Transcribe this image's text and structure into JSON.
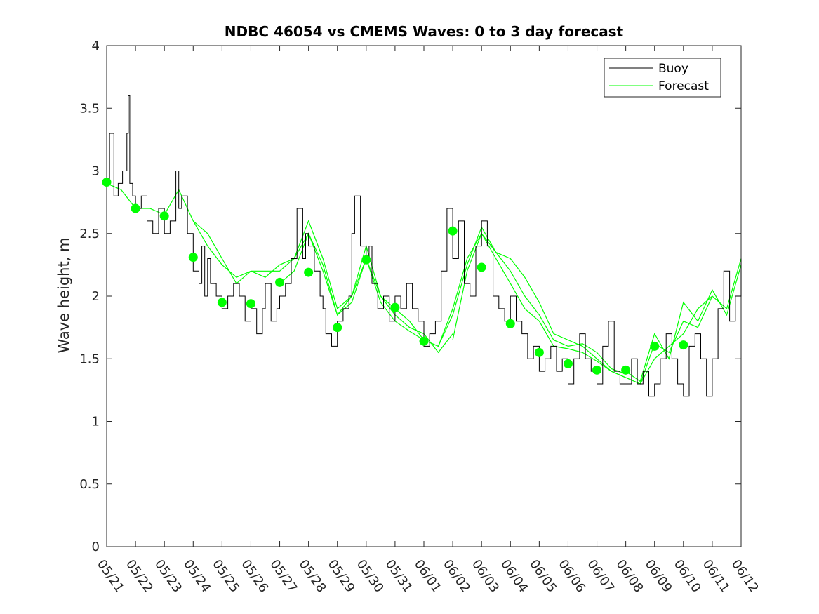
{
  "chart_data": {
    "type": "line",
    "title": "NDBC 46054 vs CMEMS Waves: 0 to 3 day forecast",
    "xlabel": "",
    "ylabel": "Wave height, m",
    "x_tick_labels": [
      "05/21",
      "05/22",
      "05/23",
      "05/24",
      "05/25",
      "05/26",
      "05/27",
      "05/28",
      "05/29",
      "05/30",
      "05/31",
      "06/01",
      "06/02",
      "06/03",
      "06/04",
      "06/05",
      "06/06",
      "06/07",
      "06/08",
      "06/09",
      "06/10",
      "06/11",
      "06/12"
    ],
    "y_ticks": [
      0,
      0.5,
      1,
      1.5,
      2,
      2.5,
      3,
      3.5,
      4
    ],
    "ylim": [
      0,
      4
    ],
    "grid": false,
    "legend": {
      "placement": "top-right",
      "entries": [
        "Buoy",
        "Forecast"
      ]
    },
    "series": [
      {
        "name": "Buoy",
        "color": "#000000",
        "x_day": [
          0,
          0.1,
          0.25,
          0.4,
          0.55,
          0.7,
          0.75,
          0.8,
          0.9,
          1.0,
          1.2,
          1.4,
          1.6,
          1.8,
          2.0,
          2.2,
          2.4,
          2.5,
          2.6,
          2.8,
          3.0,
          3.2,
          3.3,
          3.4,
          3.5,
          3.6,
          3.8,
          4.0,
          4.2,
          4.4,
          4.6,
          4.8,
          5.0,
          5.2,
          5.4,
          5.5,
          5.7,
          5.9,
          6.0,
          6.2,
          6.4,
          6.6,
          6.8,
          6.9,
          7.0,
          7.2,
          7.4,
          7.5,
          7.6,
          7.8,
          8.0,
          8.2,
          8.4,
          8.5,
          8.6,
          8.8,
          9.0,
          9.1,
          9.2,
          9.4,
          9.6,
          9.8,
          10.0,
          10.2,
          10.4,
          10.6,
          10.8,
          11.0,
          11.2,
          11.4,
          11.6,
          11.8,
          12.0,
          12.2,
          12.4,
          12.6,
          12.8,
          13.0,
          13.2,
          13.4,
          13.6,
          13.8,
          14.0,
          14.2,
          14.4,
          14.6,
          14.8,
          15.0,
          15.2,
          15.4,
          15.6,
          15.8,
          16.0,
          16.2,
          16.4,
          16.6,
          16.8,
          17.0,
          17.2,
          17.4,
          17.6,
          17.8,
          18.0,
          18.2,
          18.4,
          18.6,
          18.8,
          19.0,
          19.2,
          19.4,
          19.6,
          19.8,
          20.0,
          20.2,
          20.4,
          20.6,
          20.8,
          21.0,
          21.2,
          21.4,
          21.6,
          21.8,
          22.0
        ],
        "y": [
          2.9,
          3.3,
          2.8,
          2.9,
          3.0,
          3.3,
          3.6,
          2.9,
          2.8,
          2.7,
          2.8,
          2.6,
          2.5,
          2.7,
          2.5,
          2.6,
          3.0,
          2.7,
          2.8,
          2.5,
          2.2,
          2.1,
          2.4,
          2.0,
          2.3,
          2.1,
          2.0,
          1.9,
          2.0,
          2.1,
          2.0,
          1.8,
          1.9,
          1.7,
          1.9,
          2.1,
          1.8,
          1.9,
          2.0,
          2.1,
          2.3,
          2.7,
          2.3,
          2.5,
          2.4,
          2.2,
          2.0,
          1.9,
          1.7,
          1.6,
          1.8,
          1.9,
          2.0,
          2.5,
          2.8,
          2.4,
          2.3,
          2.4,
          2.1,
          1.9,
          2.0,
          1.8,
          2.0,
          1.9,
          2.1,
          1.9,
          1.8,
          1.6,
          1.7,
          1.8,
          2.2,
          2.7,
          2.3,
          2.6,
          2.1,
          2.0,
          2.4,
          2.6,
          2.4,
          2.0,
          1.9,
          1.8,
          2.0,
          1.8,
          1.7,
          1.5,
          1.6,
          1.4,
          1.5,
          1.6,
          1.4,
          1.5,
          1.3,
          1.5,
          1.7,
          1.5,
          1.4,
          1.3,
          1.6,
          1.8,
          1.4,
          1.3,
          1.3,
          1.5,
          1.3,
          1.4,
          1.2,
          1.3,
          1.5,
          1.7,
          1.5,
          1.3,
          1.2,
          1.6,
          1.7,
          1.5,
          1.2,
          1.5,
          1.9,
          2.2,
          1.8,
          2.0,
          2.3
        ]
      },
      {
        "name": "Forecast",
        "color": "#00ff00",
        "members": [
          {
            "x_day": [
              0,
              0.5,
              1,
              1.5,
              2,
              2.5,
              3,
              3.5,
              4,
              4.5,
              5,
              5.5,
              6,
              6.5,
              7,
              7.5,
              8,
              8.5,
              9
            ],
            "y": [
              2.9,
              2.85,
              2.7,
              2.7,
              2.65,
              2.85,
              2.6,
              2.4,
              2.25,
              2.15,
              2.2,
              2.2,
              2.2,
              2.3,
              2.5,
              2.2,
              1.85,
              1.95,
              2.3
            ]
          },
          {
            "x_day": [
              3,
              3.5,
              4,
              4.5,
              5,
              5.5,
              6,
              6.5,
              7,
              7.5,
              8,
              8.5,
              9,
              9.5,
              10,
              10.5,
              11,
              11.5,
              12
            ],
            "y": [
              2.6,
              2.5,
              2.3,
              2.1,
              2.2,
              2.15,
              2.25,
              2.3,
              2.6,
              2.3,
              1.9,
              2.0,
              2.4,
              2.0,
              1.85,
              1.75,
              1.7,
              1.55,
              1.7
            ]
          },
          {
            "x_day": [
              6,
              6.5,
              7,
              7.5,
              8,
              8.5,
              9,
              9.5,
              10,
              10.5,
              11,
              11.5,
              12,
              12.5,
              13,
              13.5,
              14,
              14.5,
              15
            ],
            "y": [
              2.1,
              2.2,
              2.5,
              2.25,
              1.85,
              2.0,
              2.3,
              1.95,
              1.8,
              1.72,
              1.65,
              1.6,
              1.9,
              2.3,
              2.5,
              2.3,
              2.1,
              1.9,
              1.8
            ]
          },
          {
            "x_day": [
              9,
              9.5,
              10,
              10.5,
              11,
              11.5,
              12,
              12.5,
              13,
              13.5,
              14,
              14.5,
              15,
              15.5,
              16,
              16.5,
              17,
              17.5,
              18
            ],
            "y": [
              2.3,
              2.0,
              1.9,
              1.8,
              1.65,
              1.6,
              1.85,
              2.25,
              2.55,
              2.35,
              2.2,
              2.0,
              1.85,
              1.65,
              1.6,
              1.62,
              1.55,
              1.42,
              1.38
            ]
          },
          {
            "x_day": [
              12,
              12.5,
              13,
              13.5,
              14,
              14.5,
              15,
              15.5,
              16,
              16.5,
              17,
              17.5,
              18,
              18.5,
              19,
              19.5,
              20,
              20.5,
              21
            ],
            "y": [
              1.65,
              2.2,
              2.5,
              2.35,
              2.3,
              2.15,
              1.95,
              1.7,
              1.65,
              1.6,
              1.5,
              1.4,
              1.35,
              1.3,
              1.5,
              1.6,
              1.7,
              1.9,
              2.0
            ]
          },
          {
            "x_day": [
              15,
              15.5,
              16,
              16.5,
              17,
              17.5,
              18,
              18.5,
              19,
              19.5,
              20,
              20.5,
              21,
              21.5,
              22
            ],
            "y": [
              1.8,
              1.6,
              1.58,
              1.55,
              1.48,
              1.4,
              1.35,
              1.3,
              1.62,
              1.55,
              1.8,
              1.75,
              2.0,
              1.9,
              2.3
            ]
          },
          {
            "x_day": [
              18,
              18.5,
              19,
              19.5,
              20,
              20.5,
              21,
              21.5,
              22
            ],
            "y": [
              1.4,
              1.32,
              1.7,
              1.5,
              1.95,
              1.8,
              2.05,
              1.85,
              2.25
            ]
          }
        ],
        "markers": {
          "x_day": [
            0,
            1,
            2,
            3,
            4,
            5,
            6,
            7,
            8,
            9,
            10,
            11,
            12,
            13,
            14,
            15,
            16,
            17,
            18,
            19,
            20
          ],
          "y": [
            2.91,
            2.7,
            2.64,
            2.31,
            1.95,
            1.94,
            2.11,
            2.19,
            1.75,
            2.29,
            1.91,
            1.64,
            2.52,
            2.23,
            1.78,
            1.55,
            1.46,
            1.41,
            1.41,
            1.6,
            1.61
          ]
        }
      }
    ]
  }
}
